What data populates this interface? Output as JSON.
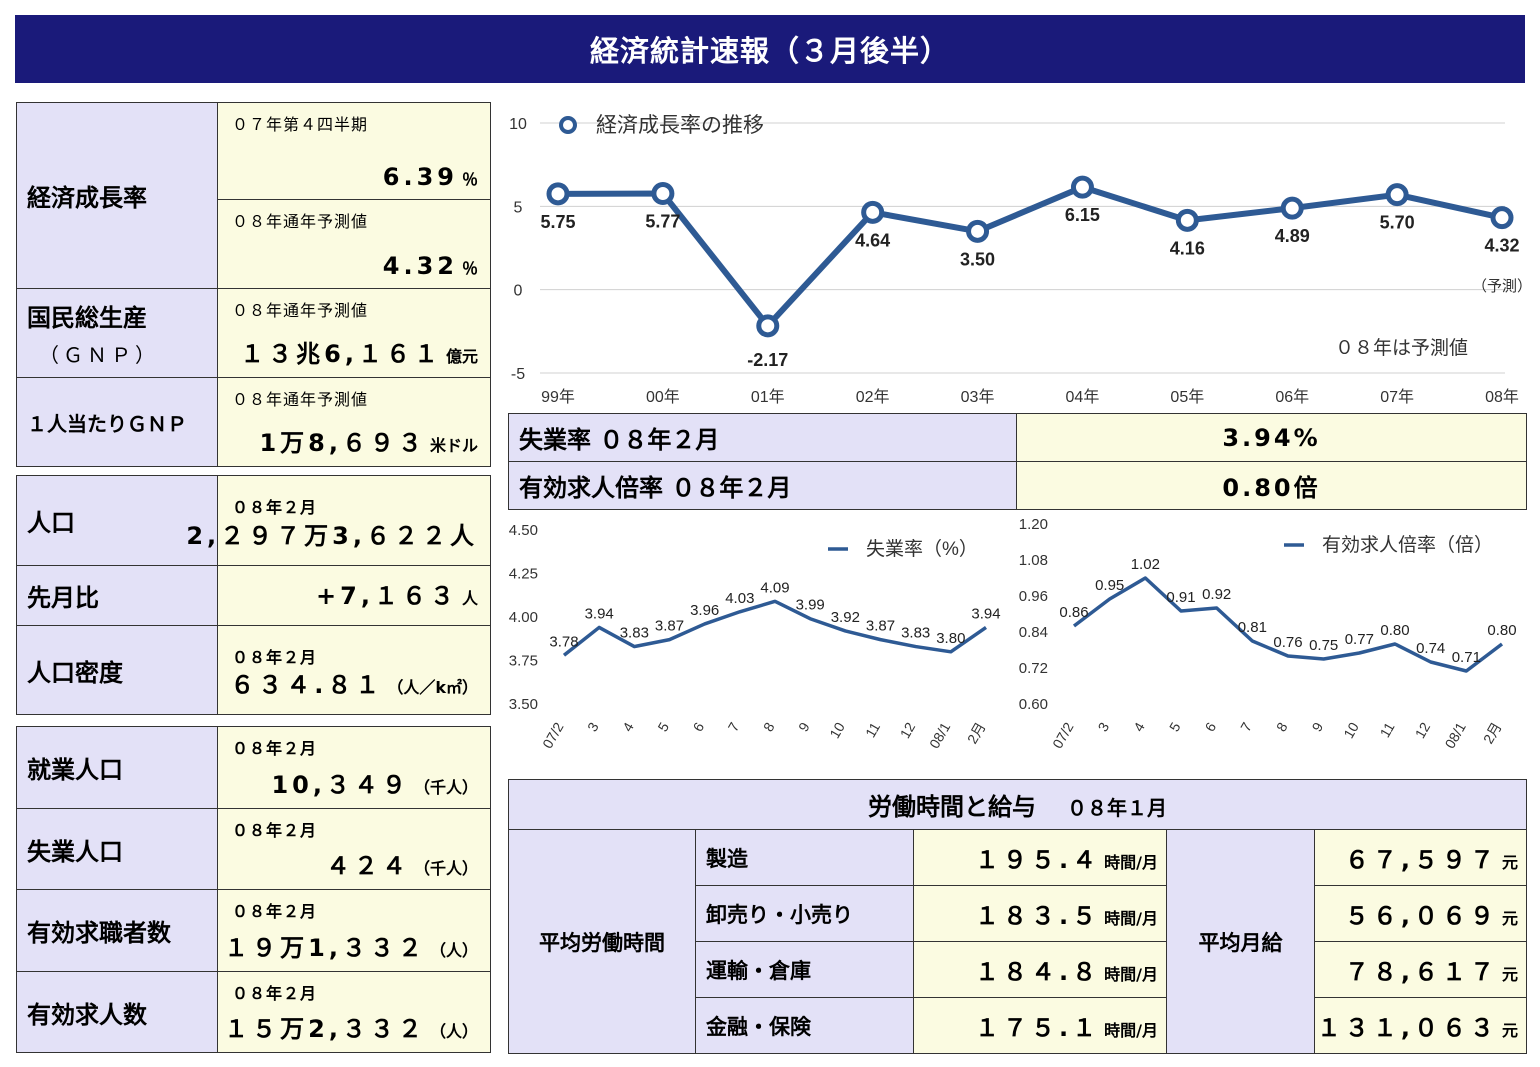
{
  "title": "経済統計速報（３月後半）",
  "growth": {
    "label": "経済成長率",
    "q_sub": "０７年第４四半期",
    "q_value": "6.39",
    "q_unit": "％",
    "year_sub": "０８年通年予測値",
    "year_value": "4.32",
    "year_unit": "％"
  },
  "gnp": {
    "label": "国民総生産",
    "label_sub": "（ＧＮＰ）",
    "sub": "０８年通年予測値",
    "value": "１３兆6,１６１",
    "unit": "億元"
  },
  "gnp_per_capita": {
    "label": "１人当たりＧＮＰ",
    "sub": "０８年通年予測値",
    "value": "1万8,６９３",
    "unit": "米ドル"
  },
  "population": {
    "label": "人口",
    "sub": "０８年２月",
    "value": "2,２９７万3,６２２人",
    "mom_label": "先月比",
    "mom_value": "+7,１６３",
    "mom_unit": "人",
    "density_label": "人口密度",
    "density_sub": "０８年２月",
    "density_value": "６３４.８１",
    "density_unit": "（人／k㎡）"
  },
  "labor": [
    {
      "label": "就業人口",
      "sub": "０８年２月",
      "value": "10,３４９",
      "unit": "（千人）"
    },
    {
      "label": "失業人口",
      "sub": "０８年２月",
      "value": "４２４",
      "unit": "（千人）"
    },
    {
      "label": "有効求職者数",
      "sub": "０８年２月",
      "value": "１９万1,３３２",
      "unit": "（人）"
    },
    {
      "label": "有効求人数",
      "sub": "０８年２月",
      "value": "１５万2,３３２",
      "unit": "（人）"
    }
  ],
  "rates": {
    "unemp_label": "失業率 ０８年２月",
    "unemp_value": "3.94%",
    "ratio_label": "有効求人倍率 ０８年２月",
    "ratio_value": "0.80倍"
  },
  "work": {
    "header_title": "労働時間と給与",
    "header_period": "０８年１月",
    "hours_label": "平均労働時間",
    "wage_label": "平均月給",
    "hour_unit": "時間/月",
    "wage_unit": "元",
    "rows": [
      {
        "sector": "製造",
        "hours": "１９５.４",
        "wage": "６７,５９７"
      },
      {
        "sector": "卸売り・小売り",
        "hours": "１８３.５",
        "wage": "５６,０６９"
      },
      {
        "sector": "運輸・倉庫",
        "hours": "１８４.８",
        "wage": "７８,６１７"
      },
      {
        "sector": "金融・保険",
        "hours": "１７５.１",
        "wage": "１３１,０６３"
      }
    ]
  },
  "chart_data": [
    {
      "type": "line",
      "title": "",
      "series": [
        {
          "name": "経済成長率の推移",
          "values": [
            5.75,
            5.77,
            -2.17,
            4.64,
            3.5,
            6.15,
            4.16,
            4.89,
            5.7,
            4.32
          ]
        }
      ],
      "categories": [
        "99年",
        "00年",
        "01年",
        "02年",
        "03年",
        "04年",
        "05年",
        "06年",
        "07年",
        "08年"
      ],
      "labels": [
        "5.75",
        "5.77",
        "-2.17",
        "4.64",
        "3.50",
        "6.15",
        "4.16",
        "4.89",
        "5.70",
        "4.32"
      ],
      "ylim": [
        -5,
        10
      ],
      "yticks": [
        "10",
        "5",
        "0",
        "-5"
      ],
      "annotation": "０８年は予測値",
      "forecast_note": "（予測）",
      "color": "#2e5a94",
      "grid": true,
      "legend": "top-left"
    },
    {
      "type": "line",
      "series": [
        {
          "name": "失業率（%）",
          "values": [
            3.78,
            3.94,
            3.83,
            3.87,
            3.96,
            4.03,
            4.09,
            3.99,
            3.92,
            3.87,
            3.83,
            3.8,
            3.94
          ]
        }
      ],
      "categories": [
        "07/2",
        "3",
        "4",
        "5",
        "6",
        "7",
        "8",
        "9",
        "10",
        "11",
        "12",
        "08/1",
        "2月"
      ],
      "labels": [
        "3.78",
        "3.94",
        "3.83",
        "3.87",
        "3.96",
        "4.03",
        "4.09",
        "3.99",
        "3.92",
        "3.87",
        "3.83",
        "3.80",
        "3.94"
      ],
      "ylim": [
        3.5,
        4.5
      ],
      "yticks": [
        "4.50",
        "4.25",
        "4.00",
        "3.75",
        "3.50"
      ],
      "color": "#2e5a94",
      "legend": "top-right"
    },
    {
      "type": "line",
      "series": [
        {
          "name": "有効求人倍率（倍）",
          "values": [
            0.86,
            0.95,
            1.02,
            0.91,
            0.92,
            0.81,
            0.76,
            0.75,
            0.77,
            0.8,
            0.74,
            0.71,
            0.8
          ]
        }
      ],
      "categories": [
        "07/2",
        "3",
        "4",
        "5",
        "6",
        "7",
        "8",
        "9",
        "10",
        "11",
        "12",
        "08/1",
        "2月"
      ],
      "labels": [
        "0.86",
        "0.95",
        "1.02",
        "0.91",
        "0.92",
        "0.81",
        "0.76",
        "0.75",
        "0.77",
        "0.80",
        "0.74",
        "0.71",
        "0.80"
      ],
      "ylim": [
        0.6,
        1.2
      ],
      "yticks": [
        "1.20",
        "1.08",
        "0.96",
        "0.84",
        "0.72",
        "0.60"
      ],
      "color": "#2e5a94",
      "legend": "top-right"
    }
  ]
}
